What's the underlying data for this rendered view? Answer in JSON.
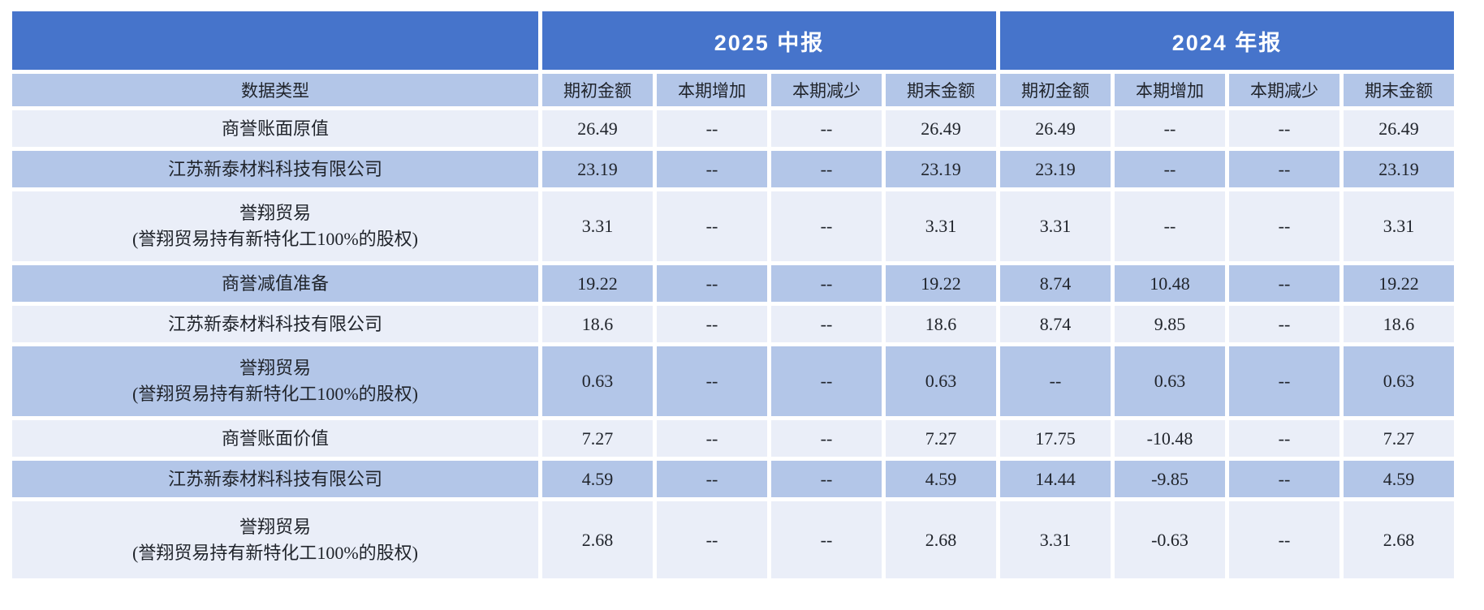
{
  "colors": {
    "header_blue": "#4674CB",
    "row_dark_blue": "#B3C6E8",
    "row_light_blue": "#EAEEF8",
    "header_text": "#FFFFFF",
    "body_text": "#20242B"
  },
  "chart_data": {
    "type": "table",
    "title": "",
    "corner_label": "",
    "row_header_label": "数据类型",
    "column_groups": [
      {
        "label": "2025 中报",
        "span": 4
      },
      {
        "label": "2024 年报",
        "span": 4
      }
    ],
    "columns": [
      "期初金额",
      "本期增加",
      "本期减少",
      "期末金额",
      "期初金额",
      "本期增加",
      "本期减少",
      "期末金额"
    ],
    "rows": [
      {
        "label": "商誉账面原值",
        "sublabel": "",
        "values": [
          "26.49",
          "--",
          "--",
          "26.49",
          "26.49",
          "--",
          "--",
          "26.49"
        ]
      },
      {
        "label": "江苏新泰材料科技有限公司",
        "sublabel": "",
        "values": [
          "23.19",
          "--",
          "--",
          "23.19",
          "23.19",
          "--",
          "--",
          "23.19"
        ]
      },
      {
        "label": "誉翔贸易",
        "sublabel": "(誉翔贸易持有新特化工100%的股权)",
        "values": [
          "3.31",
          "--",
          "--",
          "3.31",
          "3.31",
          "--",
          "--",
          "3.31"
        ]
      },
      {
        "label": "商誉减值准备",
        "sublabel": "",
        "values": [
          "19.22",
          "--",
          "--",
          "19.22",
          "8.74",
          "10.48",
          "--",
          "19.22"
        ]
      },
      {
        "label": "江苏新泰材料科技有限公司",
        "sublabel": "",
        "values": [
          "18.6",
          "--",
          "--",
          "18.6",
          "8.74",
          "9.85",
          "--",
          "18.6"
        ]
      },
      {
        "label": "誉翔贸易",
        "sublabel": "(誉翔贸易持有新特化工100%的股权)",
        "values": [
          "0.63",
          "--",
          "--",
          "0.63",
          "--",
          "0.63",
          "--",
          "0.63"
        ]
      },
      {
        "label": "商誉账面价值",
        "sublabel": "",
        "values": [
          "7.27",
          "--",
          "--",
          "7.27",
          "17.75",
          "-10.48",
          "--",
          "7.27"
        ]
      },
      {
        "label": "江苏新泰材料科技有限公司",
        "sublabel": "",
        "values": [
          "4.59",
          "--",
          "--",
          "4.59",
          "14.44",
          "-9.85",
          "--",
          "4.59"
        ]
      },
      {
        "label": "誉翔贸易",
        "sublabel": "(誉翔贸易持有新特化工100%的股权)",
        "values": [
          "2.68",
          "--",
          "--",
          "2.68",
          "3.31",
          "-0.63",
          "--",
          "2.68"
        ]
      }
    ]
  }
}
